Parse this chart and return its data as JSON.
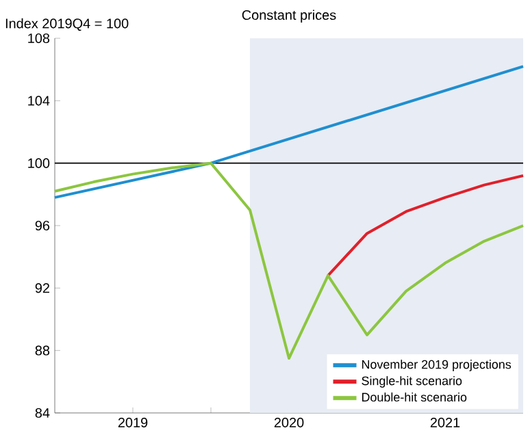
{
  "chart_data": {
    "type": "line",
    "title": "Constant prices",
    "ylabel": "Index 2019Q4 = 100",
    "xlim": [
      "2019-01",
      "2022-01"
    ],
    "ylim": [
      84,
      108
    ],
    "yticks": [
      84,
      88,
      92,
      96,
      100,
      104,
      108
    ],
    "xticks": [
      {
        "value": "2019-07",
        "label": "2019"
      },
      {
        "value": "2020-01",
        "label": null
      },
      {
        "value": "2020-07",
        "label": "2020"
      },
      {
        "value": "2021-01",
        "label": null
      },
      {
        "value": "2021-07",
        "label": "2021"
      }
    ],
    "series": [
      {
        "name": "November 2019 projections",
        "color": "#1f8fd0",
        "x": [
          "2019-01",
          "2020-01",
          "2022-01"
        ],
        "values": [
          97.8,
          100,
          106.2
        ]
      },
      {
        "name": "Single-hit scenario",
        "color": "#e0202a",
        "x": [
          "2020-10",
          "2021-01",
          "2021-04",
          "2021-07",
          "2021-10",
          "2022-01"
        ],
        "values": [
          92.8,
          95.5,
          96.9,
          97.8,
          98.6,
          99.2
        ]
      },
      {
        "name": "Double-hit scenario",
        "color": "#8cc63f",
        "x": [
          "2019-01",
          "2019-04",
          "2019-07",
          "2019-10",
          "2020-01",
          "2020-04",
          "2020-07",
          "2020-10",
          "2021-01",
          "2021-04",
          "2021-07",
          "2021-10",
          "2022-01"
        ],
        "values": [
          98.2,
          98.8,
          99.3,
          99.7,
          100,
          97,
          87.5,
          92.8,
          89,
          91.8,
          93.6,
          95,
          96
        ]
      }
    ],
    "ref_lines": [
      {
        "axis": "y",
        "value": 100,
        "color": "#000000"
      }
    ],
    "bands": [
      {
        "axis": "x",
        "from": "2020-04",
        "to": "2022-01",
        "color": "#e8ecf4"
      }
    ],
    "legend": "bottom right",
    "grid": false,
    "marker": "none",
    "line_style": "solid"
  }
}
